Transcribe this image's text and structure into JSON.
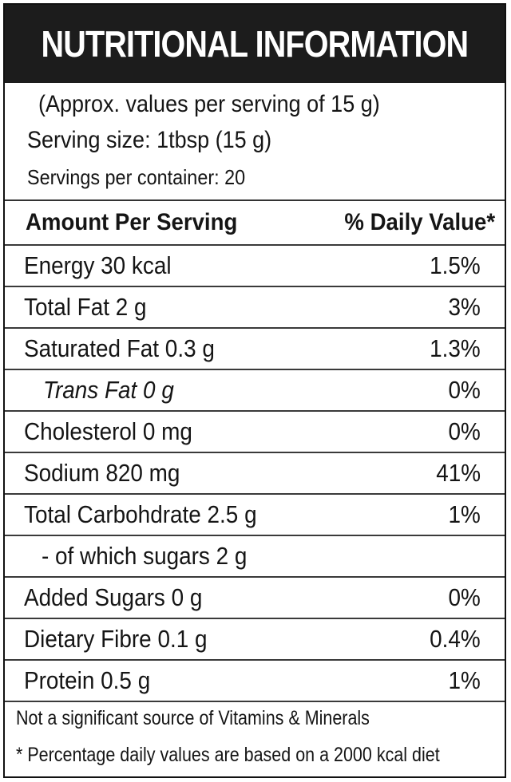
{
  "title": "NUTRITIONAL INFORMATION",
  "approx": "(Approx. values per serving of 15 g)",
  "serving_size": "Serving size: 1tbsp (15 g)",
  "servings_per_container": "Servings per container: 20",
  "header": {
    "amount": "Amount Per Serving",
    "daily_value": "% Daily Value*"
  },
  "rows": [
    {
      "name": "Energy 30 kcal",
      "dv": "1.5%"
    },
    {
      "name": "Total Fat 2 g",
      "dv": "3%"
    },
    {
      "name": "Saturated Fat 0.3 g",
      "dv": "1.3%"
    },
    {
      "name": "Trans Fat 0 g",
      "dv": "0%"
    },
    {
      "name": "Cholesterol 0 mg",
      "dv": "0%"
    },
    {
      "name": "Sodium 820 mg",
      "dv": "41%"
    },
    {
      "name": "Total Carbohdrate 2.5 g",
      "dv": "1%"
    },
    {
      "name": "- of which sugars 2 g",
      "dv": ""
    },
    {
      "name": "Added Sugars 0 g",
      "dv": "0%"
    },
    {
      "name": "Dietary Fibre 0.1 g",
      "dv": "0.4%"
    },
    {
      "name": "Protein 0.5 g",
      "dv": "1%"
    }
  ],
  "footer": {
    "note1": "Not a significant source of Vitamins & Minerals",
    "note2": "* Percentage daily values are based on a 2000 kcal diet"
  }
}
